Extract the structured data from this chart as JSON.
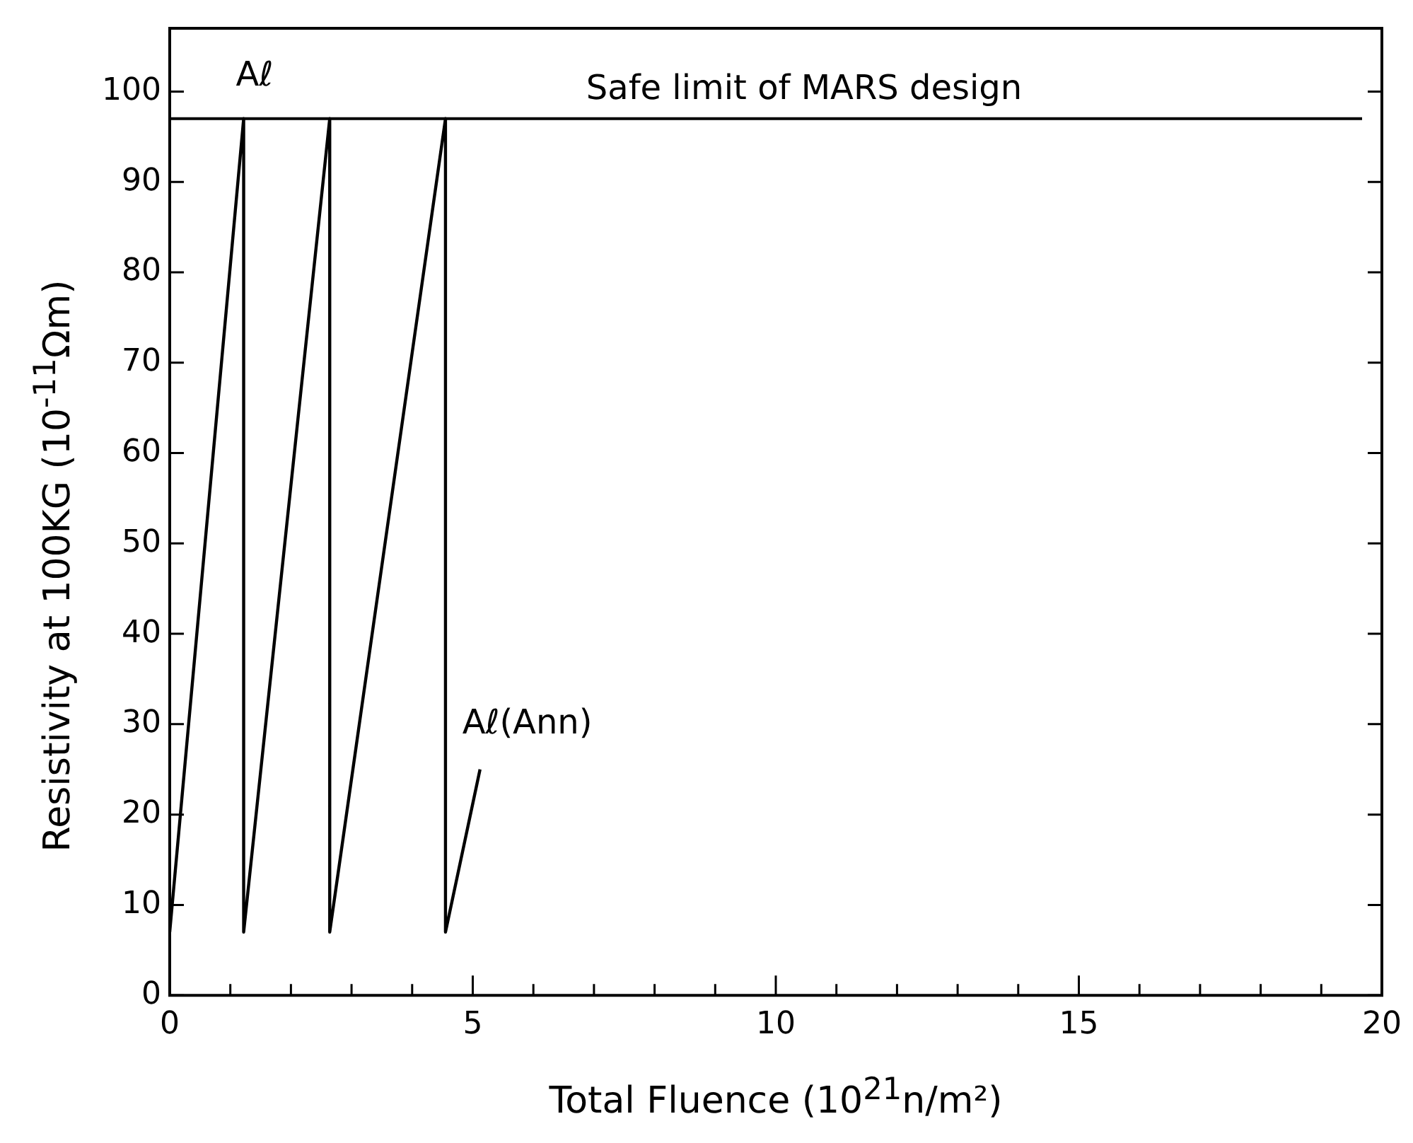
{
  "chart_data": {
    "type": "line",
    "xlabel": "Total Fluence  (10$^{21}$n/m²)",
    "ylabel": "Resistivity at 100KG (10$^{-11}$Ωm)",
    "series": [
      {
        "color": "#000000",
        "x": [
          0,
          1.22,
          1.22,
          2.64,
          2.64,
          4.55,
          4.55,
          5.12
        ],
        "values": [
          7,
          97,
          7,
          97,
          7,
          97,
          7,
          25
        ]
      }
    ],
    "xlim": [
      0,
      20
    ],
    "xticks": [
      0,
      {
        "value": 1,
        "label": null
      },
      {
        "value": 2,
        "label": null
      },
      {
        "value": 3,
        "label": null
      },
      {
        "value": 4,
        "label": null
      },
      5,
      {
        "value": 6,
        "label": null
      },
      {
        "value": 7,
        "label": null
      },
      {
        "value": 8,
        "label": null
      },
      {
        "value": 9,
        "label": null
      },
      10,
      {
        "value": 11,
        "label": null
      },
      {
        "value": 12,
        "label": null
      },
      {
        "value": 13,
        "label": null
      },
      {
        "value": 14,
        "label": null
      },
      15,
      {
        "value": 16,
        "label": null
      },
      {
        "value": 17,
        "label": null
      },
      {
        "value": 18,
        "label": null
      },
      {
        "value": 19,
        "label": null
      },
      20
    ],
    "ylim": [
      0,
      107
    ],
    "yticks": [
      0,
      10,
      20,
      30,
      40,
      50,
      60,
      70,
      80,
      90,
      100
    ],
    "ref_lines": [
      {
        "axis": "y",
        "value": 97,
        "label": "Safe limit of MARS design",
        "color": "#000000"
      }
    ],
    "annotations": [
      "Aℓ",
      "Aℓ(Ann)"
    ],
    "grid": false,
    "legend": false
  }
}
